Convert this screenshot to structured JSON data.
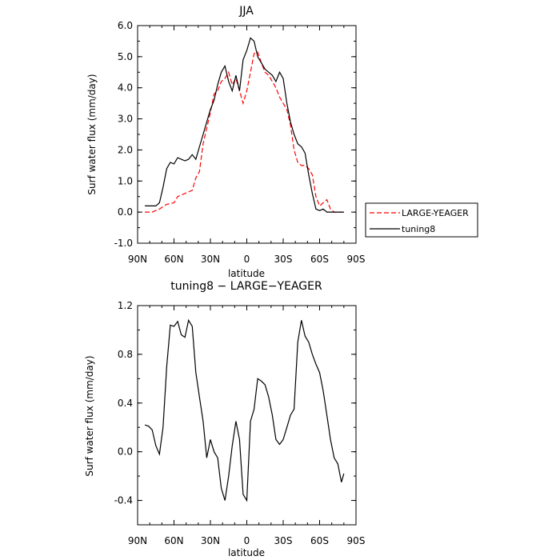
{
  "chart_data": [
    {
      "type": "line",
      "title": "JJA",
      "xlabel": "latitude",
      "ylabel": "Surf water flux (mm/day)",
      "xlim": [
        90,
        -90
      ],
      "ylim": [
        -1.0,
        6.0
      ],
      "x_ticks": [
        "90N",
        "60N",
        "30N",
        "0",
        "30S",
        "60S",
        "90S"
      ],
      "y_ticks": [
        "-1.0",
        "0.0",
        "1.0",
        "2.0",
        "3.0",
        "4.0",
        "5.0",
        "6.0"
      ],
      "legend_position": "right",
      "series": [
        {
          "name": "LARGE-YEAGER",
          "color": "#ff0000",
          "dash": "dashed",
          "x": [
            84,
            78,
            72,
            66,
            60,
            57,
            54,
            51,
            48,
            45,
            42,
            39,
            36,
            33,
            30,
            27,
            24,
            21,
            18,
            15,
            12,
            9,
            6,
            3,
            0,
            -3,
            -6,
            -9,
            -12,
            -15,
            -18,
            -21,
            -24,
            -27,
            -30,
            -33,
            -36,
            -39,
            -42,
            -45,
            -48,
            -51,
            -54,
            -57,
            -60,
            -63,
            -66,
            -69,
            -72,
            -75,
            -78,
            -80
          ],
          "y": [
            0.0,
            0.0,
            0.1,
            0.25,
            0.3,
            0.5,
            0.55,
            0.6,
            0.65,
            0.7,
            1.1,
            1.3,
            2.2,
            2.7,
            3.2,
            3.8,
            3.9,
            4.2,
            4.3,
            4.5,
            4.1,
            4.3,
            3.9,
            3.5,
            3.9,
            4.5,
            5.1,
            5.15,
            4.8,
            4.5,
            4.4,
            4.2,
            4.0,
            3.7,
            3.5,
            3.3,
            2.8,
            2.0,
            1.6,
            1.5,
            1.5,
            1.4,
            1.2,
            0.5,
            0.2,
            0.3,
            0.4,
            0.1,
            0.0,
            0.0,
            0.0,
            0.0
          ]
        },
        {
          "name": "tuning8",
          "color": "#000000",
          "dash": "solid",
          "x": [
            84,
            78,
            75,
            72,
            69,
            66,
            63,
            60,
            57,
            54,
            51,
            48,
            45,
            42,
            39,
            36,
            33,
            30,
            27,
            24,
            21,
            18,
            15,
            12,
            9,
            6,
            3,
            0,
            -3,
            -6,
            -9,
            -12,
            -15,
            -18,
            -21,
            -24,
            -27,
            -30,
            -33,
            -36,
            -39,
            -42,
            -45,
            -48,
            -51,
            -54,
            -57,
            -60,
            -63,
            -66,
            -69,
            -72,
            -75,
            -78,
            -80
          ],
          "y": [
            0.2,
            0.2,
            0.2,
            0.3,
            0.8,
            1.4,
            1.6,
            1.55,
            1.75,
            1.7,
            1.65,
            1.7,
            1.85,
            1.7,
            2.1,
            2.5,
            2.9,
            3.3,
            3.6,
            4.1,
            4.5,
            4.7,
            4.2,
            3.9,
            4.4,
            3.9,
            4.9,
            5.2,
            5.6,
            5.5,
            5.0,
            4.8,
            4.6,
            4.5,
            4.4,
            4.2,
            4.5,
            4.3,
            3.5,
            2.9,
            2.5,
            2.2,
            2.1,
            1.9,
            1.2,
            0.6,
            0.1,
            0.05,
            0.1,
            0.0,
            0.0,
            0.0,
            0.0,
            0.0,
            0.0
          ]
        }
      ]
    },
    {
      "type": "line",
      "title": "tuning8 − LARGE−YEAGER",
      "xlabel": "latitude",
      "ylabel": "Surf water flux (mm/day)",
      "xlim": [
        90,
        -90
      ],
      "ylim": [
        -0.6,
        1.2
      ],
      "x_ticks": [
        "90N",
        "60N",
        "30N",
        "0",
        "30S",
        "60S",
        "90S"
      ],
      "y_ticks": [
        "-0.4",
        "0.0",
        "0.4",
        "0.8",
        "1.2"
      ],
      "series": [
        {
          "name": "",
          "color": "#000000",
          "dash": "solid",
          "x": [
            84,
            81,
            78,
            75,
            72,
            69,
            66,
            63,
            60,
            57,
            54,
            51,
            48,
            45,
            42,
            39,
            36,
            33,
            30,
            27,
            24,
            21,
            18,
            15,
            12,
            9,
            6,
            3,
            0,
            -3,
            -6,
            -9,
            -12,
            -15,
            -18,
            -21,
            -24,
            -27,
            -30,
            -33,
            -36,
            -39,
            -42,
            -45,
            -48,
            -51,
            -54,
            -57,
            -60,
            -63,
            -66,
            -69,
            -72,
            -75,
            -78,
            -80
          ],
          "y": [
            0.22,
            0.21,
            0.18,
            0.05,
            -0.02,
            0.2,
            0.7,
            1.04,
            1.03,
            1.07,
            0.96,
            0.94,
            1.08,
            1.03,
            0.65,
            0.45,
            0.25,
            -0.05,
            0.1,
            0.0,
            -0.05,
            -0.3,
            -0.4,
            -0.2,
            0.05,
            0.25,
            0.1,
            -0.35,
            -0.4,
            0.25,
            0.35,
            0.6,
            0.58,
            0.55,
            0.45,
            0.3,
            0.1,
            0.06,
            0.1,
            0.2,
            0.3,
            0.35,
            0.9,
            1.08,
            0.95,
            0.9,
            0.8,
            0.72,
            0.65,
            0.5,
            0.3,
            0.1,
            -0.05,
            -0.1,
            -0.25,
            -0.18
          ]
        }
      ]
    }
  ]
}
